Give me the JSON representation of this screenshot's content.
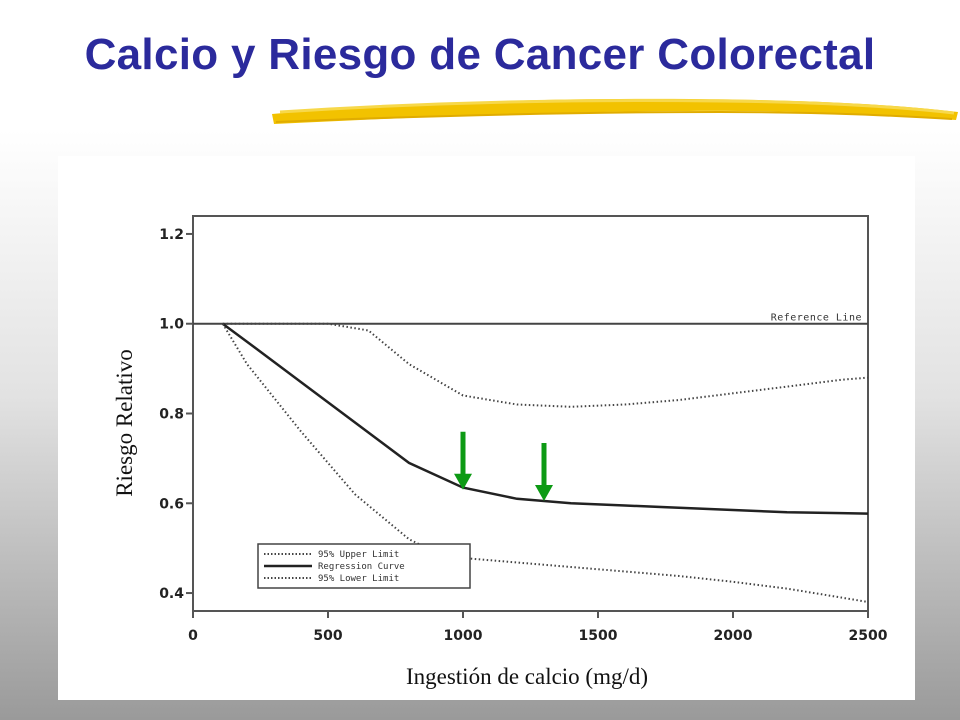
{
  "slide": {
    "title": "Calcio y Riesgo de Cancer Colorectal",
    "title_color": "#2b2a9c",
    "accent_color": "#f2c200"
  },
  "chart_data": {
    "type": "line",
    "xlabel": "Ingestión de calcio (mg/d)",
    "ylabel": "Riesgo Relativo",
    "xlim": [
      0,
      2500
    ],
    "ylim": [
      0.36,
      1.24
    ],
    "x_ticks": [
      0,
      500,
      1000,
      1500,
      2000,
      2500
    ],
    "y_ticks": [
      0.4,
      0.6,
      0.8,
      1.0,
      1.2
    ],
    "y_tick_labels": [
      "0.4",
      "0.6",
      "0.8",
      "1.0",
      "1.2"
    ],
    "grid": false,
    "legend_position": "bottom-left",
    "reference_line": {
      "y": 1.0,
      "label": "Reference Line"
    },
    "series": [
      {
        "name": "95% Upper Limit",
        "style": "dotted",
        "x": [
          110,
          300,
          500,
          650,
          800,
          1000,
          1200,
          1400,
          1600,
          1800,
          2000,
          2200,
          2400,
          2500
        ],
        "y": [
          1.0,
          1.0,
          1.0,
          0.985,
          0.91,
          0.84,
          0.82,
          0.815,
          0.82,
          0.83,
          0.845,
          0.86,
          0.875,
          0.88
        ]
      },
      {
        "name": "Regression Curve",
        "style": "solid",
        "x": [
          110,
          200,
          400,
          600,
          800,
          1000,
          1200,
          1400,
          1600,
          1800,
          2000,
          2200,
          2400,
          2500
        ],
        "y": [
          1.0,
          0.96,
          0.87,
          0.78,
          0.69,
          0.635,
          0.61,
          0.6,
          0.595,
          0.59,
          0.585,
          0.58,
          0.578,
          0.577
        ]
      },
      {
        "name": "95% Lower Limit",
        "style": "dotted",
        "x": [
          110,
          200,
          400,
          600,
          800,
          900,
          1000,
          1200,
          1400,
          1600,
          1800,
          2000,
          2200,
          2400,
          2500
        ],
        "y": [
          1.0,
          0.91,
          0.76,
          0.62,
          0.52,
          0.49,
          0.478,
          0.468,
          0.458,
          0.448,
          0.438,
          0.425,
          0.41,
          0.39,
          0.38
        ]
      }
    ],
    "annotations": [
      {
        "type": "arrow",
        "x": 1000,
        "y": 0.63,
        "color": "#0d9a14"
      },
      {
        "type": "arrow",
        "x": 1300,
        "y": 0.605,
        "color": "#0d9a14"
      }
    ]
  }
}
